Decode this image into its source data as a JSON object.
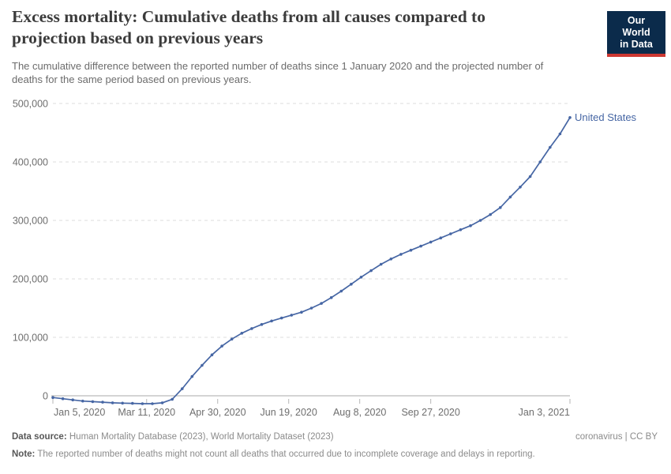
{
  "header": {
    "title": "Excess mortality: Cumulative deaths from all causes compared to projection based on previous years",
    "title_lines": [
      "Excess mortality: Cumulative deaths from all causes compared to",
      "projection based on previous years"
    ],
    "subtitle_lines": [
      "The cumulative difference between the reported number of deaths since 1 January 2020 and the projected number of",
      "deaths for the same period based on previous years."
    ],
    "logo": {
      "line1": "Our World",
      "line2": "in Data",
      "bg_color": "#0b2b4b",
      "bar_color": "#cd3731"
    }
  },
  "chart_data": {
    "type": "line",
    "title": "Excess mortality: Cumulative deaths from all causes compared to projection based on previous years",
    "subtitle": "The cumulative difference between the reported number of deaths since 1 January 2020 and the projected number of deaths for the same period based on previous years.",
    "xlabel": "",
    "ylabel": "",
    "ylim": [
      -14000,
      500000
    ],
    "grid": "dashed-horizontal",
    "legend_position": "end-of-line-label",
    "total_days": 364,
    "x": [
      "Jan 5, 2020",
      "Jan 12, 2020",
      "Jan 19, 2020",
      "Jan 26, 2020",
      "Feb 2, 2020",
      "Feb 9, 2020",
      "Feb 16, 2020",
      "Feb 23, 2020",
      "Mar 1, 2020",
      "Mar 8, 2020",
      "Mar 15, 2020",
      "Mar 22, 2020",
      "Mar 29, 2020",
      "Apr 5, 2020",
      "Apr 12, 2020",
      "Apr 19, 2020",
      "Apr 26, 2020",
      "May 3, 2020",
      "May 10, 2020",
      "May 17, 2020",
      "May 24, 2020",
      "May 31, 2020",
      "Jun 7, 2020",
      "Jun 14, 2020",
      "Jun 21, 2020",
      "Jun 28, 2020",
      "Jul 5, 2020",
      "Jul 12, 2020",
      "Jul 19, 2020",
      "Jul 26, 2020",
      "Aug 2, 2020",
      "Aug 9, 2020",
      "Aug 16, 2020",
      "Aug 23, 2020",
      "Aug 30, 2020",
      "Sep 6, 2020",
      "Sep 13, 2020",
      "Sep 20, 2020",
      "Sep 27, 2020",
      "Oct 4, 2020",
      "Oct 11, 2020",
      "Oct 18, 2020",
      "Oct 25, 2020",
      "Nov 1, 2020",
      "Nov 8, 2020",
      "Nov 15, 2020",
      "Nov 22, 2020",
      "Nov 29, 2020",
      "Dec 6, 2020",
      "Dec 13, 2020",
      "Dec 20, 2020",
      "Dec 27, 2020",
      "Jan 3, 2021"
    ],
    "series": [
      {
        "name": "United States",
        "color": "#4666a4",
        "values": [
          -3000,
          -5000,
          -7000,
          -9000,
          -10000,
          -11000,
          -12000,
          -12500,
          -13000,
          -13500,
          -13500,
          -12000,
          -6000,
          12000,
          33000,
          52000,
          70000,
          85000,
          97000,
          107000,
          115000,
          122000,
          128000,
          133000,
          138000,
          143000,
          150000,
          158000,
          168000,
          179000,
          191000,
          203000,
          214000,
          225000,
          234000,
          242000,
          249000,
          256000,
          263000,
          270000,
          277000,
          284000,
          291000,
          300000,
          310000,
          322000,
          340000,
          357000,
          375000,
          400000,
          425000,
          448000,
          476000
        ]
      }
    ],
    "y_ticks": [
      {
        "value": 0,
        "label": "0"
      },
      {
        "value": 100000,
        "label": "100,000"
      },
      {
        "value": 200000,
        "label": "200,000"
      },
      {
        "value": 300000,
        "label": "300,000"
      },
      {
        "value": 400000,
        "label": "400,000"
      },
      {
        "value": 500000,
        "label": "500,000"
      }
    ],
    "x_ticks": [
      {
        "day": 0,
        "label": "Jan 5, 2020",
        "anchor": "start"
      },
      {
        "day": 66,
        "label": "Mar 11, 2020",
        "anchor": "middle"
      },
      {
        "day": 116,
        "label": "Apr 30, 2020",
        "anchor": "middle"
      },
      {
        "day": 166,
        "label": "Jun 19, 2020",
        "anchor": "middle"
      },
      {
        "day": 216,
        "label": "Aug 8, 2020",
        "anchor": "middle"
      },
      {
        "day": 266,
        "label": "Sep 27, 2020",
        "anchor": "middle"
      },
      {
        "day": 364,
        "label": "Jan 3, 2021",
        "anchor": "end"
      }
    ],
    "colors": {
      "grid": "#dcdcdc",
      "zero_axis": "#a8a8a8",
      "tick_mark": "#b6b6b6",
      "axis_text": "#6e6e6e"
    }
  },
  "footer": {
    "source_label": "Data source:",
    "source_text": "Human Mortality Database (2023), World Mortality Dataset (2023)",
    "license_text": "coronavirus | CC BY",
    "note_label": "Note:",
    "note_text": "The reported number of deaths might not count all deaths that occurred due to incomplete coverage and delays in reporting."
  }
}
